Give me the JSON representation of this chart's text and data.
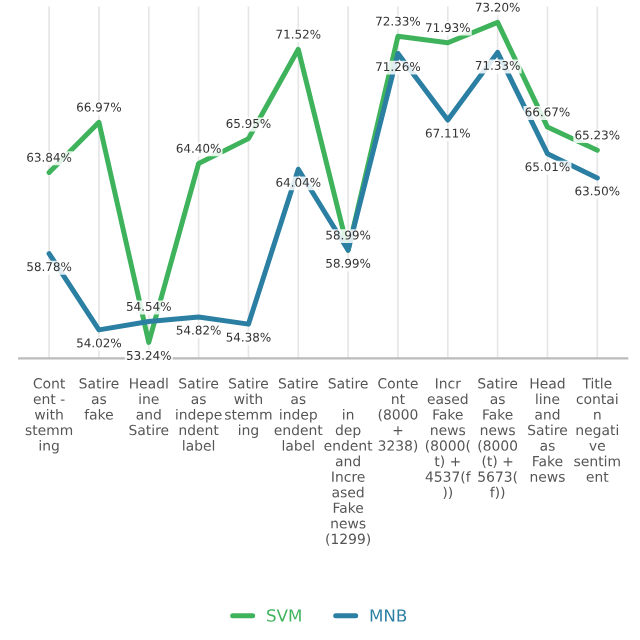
{
  "chart_data": {
    "type": "line",
    "categories": [
      "Cont\nent -\nwith\nstemm\ning",
      "Satire\nas\nfake",
      "Headl\nine\nand\nSatire",
      "Satire\nas\nindepe\nndent\nlabel",
      "Satire\nwith\nstemm\ning",
      "Satire\nas\nindep\nendent\nlabel",
      "Satire\n\nin\ndep\nendent\nand\nIncre\nased\nFake\nnews\n(1299)",
      "Conte\nnt\n(8000\n+\n3238)",
      "Incr\neased\nFake\nnews\n(8000(\nt) +\n4537(f\n))",
      "Satire\nas\nFake\nnews\n(8000\n(t) +\n5673(\nf))",
      "Head\nline\nand\nSatire\nas\nFake\nnews",
      "Title\ncontai\nn\nnegati\nve\nsentim\nent"
    ],
    "series": [
      {
        "name": "SVM",
        "color": "#3fb35c",
        "values": [
          63.84,
          66.97,
          53.24,
          64.4,
          65.95,
          71.52,
          58.99,
          72.33,
          71.93,
          73.2,
          66.67,
          65.23
        ],
        "value_labels": [
          "63.84%",
          "66.97%",
          "53.24%",
          "64.40%",
          "65.95%",
          "71.52%",
          "58.99%",
          "72.33%",
          "71.93%",
          "73.20%",
          "66.67%",
          "65.23%"
        ]
      },
      {
        "name": "MNB",
        "color": "#2b7fa3",
        "values": [
          58.78,
          54.02,
          54.54,
          54.82,
          54.38,
          64.04,
          58.99,
          71.26,
          67.11,
          71.33,
          65.01,
          63.5
        ],
        "value_labels": [
          "58.78%",
          "54.02%",
          "54.54%",
          "54.82%",
          "54.38%",
          "64.04%",
          "58.99%",
          "71.26%",
          "67.11%",
          "71.33%",
          "65.01%",
          "63.50%"
        ]
      }
    ],
    "grid": "x",
    "legend": "bottom",
    "tick_labels": "x",
    "marker": "none",
    "line_style": "solid"
  }
}
